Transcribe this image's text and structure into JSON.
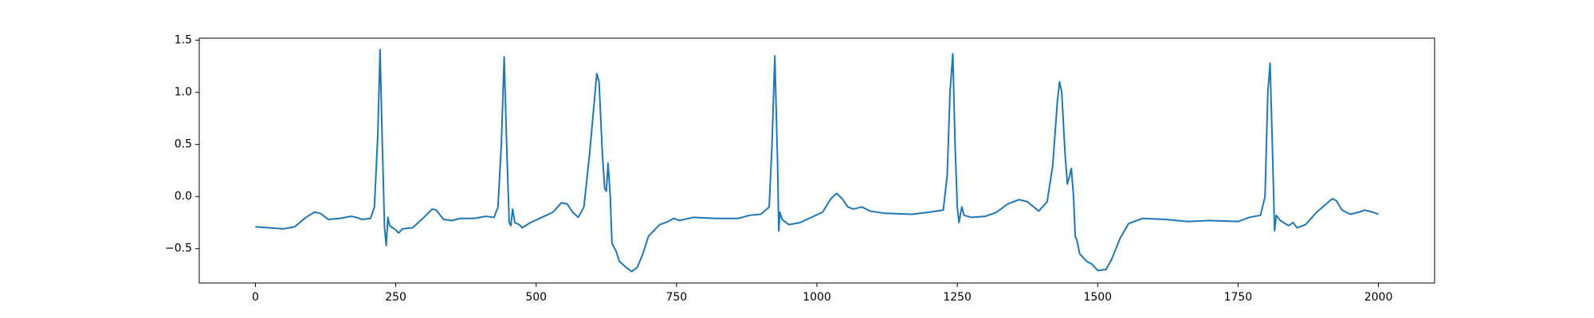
{
  "chart_data": {
    "type": "line",
    "color": "#1f77b4",
    "x": [
      0,
      50,
      70,
      90,
      105,
      115,
      130,
      150,
      170,
      180,
      190,
      205,
      212,
      218,
      222,
      226,
      230,
      233,
      236,
      239,
      250,
      255,
      262,
      280,
      300,
      315,
      322,
      335,
      350,
      365,
      390,
      410,
      425,
      432,
      438,
      443,
      448,
      452,
      455,
      458,
      462,
      470,
      475,
      490,
      510,
      530,
      545,
      555,
      565,
      575,
      585,
      595,
      605,
      608,
      612,
      618,
      622,
      625,
      628,
      632,
      635,
      638,
      642,
      648,
      660,
      670,
      680,
      690,
      700,
      720,
      735,
      745,
      755,
      780,
      820,
      860,
      880,
      900,
      915,
      920,
      925,
      930,
      932,
      934,
      938,
      950,
      970,
      990,
      1010,
      1025,
      1035,
      1045,
      1055,
      1065,
      1080,
      1095,
      1120,
      1170,
      1200,
      1225,
      1232,
      1237,
      1242,
      1246,
      1250,
      1253,
      1258,
      1262,
      1275,
      1300,
      1320,
      1340,
      1360,
      1375,
      1395,
      1410,
      1420,
      1428,
      1432,
      1436,
      1442,
      1446,
      1450,
      1453,
      1457,
      1460,
      1463,
      1468,
      1480,
      1490,
      1500,
      1515,
      1525,
      1540,
      1555,
      1570,
      1580,
      1620,
      1660,
      1700,
      1750,
      1770,
      1790,
      1798,
      1803,
      1807,
      1812,
      1815,
      1818,
      1825,
      1840,
      1848,
      1855,
      1870,
      1890,
      1905,
      1918,
      1925,
      1935,
      1950,
      1965,
      1975,
      1990,
      2000
    ],
    "values": [
      -0.29,
      -0.31,
      -0.29,
      -0.2,
      -0.15,
      -0.16,
      -0.22,
      -0.21,
      -0.19,
      -0.2,
      -0.22,
      -0.21,
      -0.1,
      0.6,
      1.41,
      0.5,
      -0.3,
      -0.47,
      -0.2,
      -0.28,
      -0.32,
      -0.35,
      -0.31,
      -0.3,
      -0.2,
      -0.12,
      -0.13,
      -0.22,
      -0.23,
      -0.21,
      -0.21,
      -0.19,
      -0.2,
      -0.1,
      0.5,
      1.34,
      0.4,
      -0.25,
      -0.28,
      -0.12,
      -0.25,
      -0.27,
      -0.3,
      -0.25,
      -0.2,
      -0.15,
      -0.06,
      -0.07,
      -0.15,
      -0.2,
      -0.1,
      0.4,
      1.0,
      1.18,
      1.1,
      0.4,
      0.08,
      0.05,
      0.32,
      0.0,
      -0.45,
      -0.48,
      -0.52,
      -0.62,
      -0.68,
      -0.72,
      -0.68,
      -0.55,
      -0.38,
      -0.27,
      -0.24,
      -0.21,
      -0.23,
      -0.2,
      -0.21,
      -0.21,
      -0.18,
      -0.17,
      -0.1,
      0.5,
      1.35,
      0.3,
      -0.33,
      -0.15,
      -0.22,
      -0.27,
      -0.25,
      -0.2,
      -0.15,
      -0.02,
      0.03,
      -0.02,
      -0.1,
      -0.12,
      -0.1,
      -0.14,
      -0.16,
      -0.17,
      -0.15,
      -0.13,
      0.2,
      1.0,
      1.37,
      0.5,
      -0.1,
      -0.25,
      -0.1,
      -0.18,
      -0.2,
      -0.19,
      -0.15,
      -0.07,
      -0.03,
      -0.05,
      -0.14,
      -0.05,
      0.3,
      0.9,
      1.1,
      1.0,
      0.4,
      0.12,
      0.2,
      0.27,
      0.0,
      -0.38,
      -0.42,
      -0.55,
      -0.62,
      -0.65,
      -0.71,
      -0.7,
      -0.6,
      -0.4,
      -0.26,
      -0.23,
      -0.21,
      -0.22,
      -0.24,
      -0.23,
      -0.24,
      -0.2,
      -0.18,
      0.0,
      1.0,
      1.28,
      0.3,
      -0.33,
      -0.18,
      -0.23,
      -0.28,
      -0.25,
      -0.3,
      -0.27,
      -0.15,
      -0.08,
      -0.02,
      -0.04,
      -0.13,
      -0.17,
      -0.15,
      -0.13,
      -0.15,
      -0.17
    ],
    "xlim": [
      -100,
      2100
    ],
    "xticks": [
      0,
      250,
      500,
      750,
      1000,
      1250,
      1500,
      1750,
      2000
    ],
    "ylim": [
      -0.83,
      1.52
    ],
    "yticks": [
      {
        "value": -0.5,
        "label": "−0.5"
      },
      {
        "value": 0.0,
        "label": "0.0"
      },
      0.5,
      {
        "value": 1.0,
        "label": "1.0"
      },
      1.5
    ],
    "grid": false
  }
}
